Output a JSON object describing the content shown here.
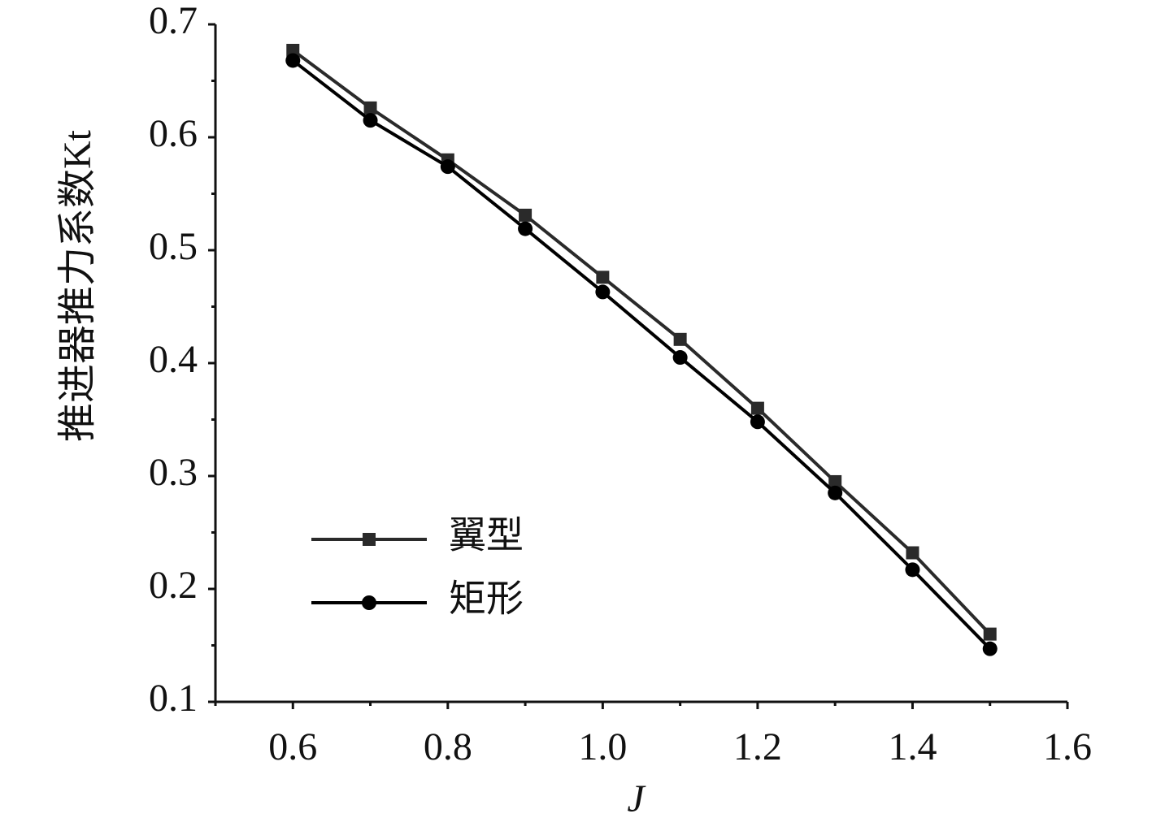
{
  "chart_data": {
    "type": "line",
    "ylabel": "推进器推力系数Kt",
    "xlabel": "J",
    "xlim": [
      0.5,
      1.6
    ],
    "ylim": [
      0.1,
      0.7
    ],
    "xticks": [
      0.6,
      0.8,
      {
        "value": 1,
        "label": "1.0"
      },
      1.2,
      1.4,
      1.6
    ],
    "yticks": [
      0.1,
      0.2,
      0.3,
      0.4,
      0.5,
      0.6,
      0.7
    ],
    "xminor": [
      0.5,
      0.7,
      0.9,
      1.1,
      1.3,
      1.5
    ],
    "yminor": [
      0.15,
      0.25,
      0.35,
      0.45,
      0.55,
      0.65
    ],
    "x": [
      0.6,
      0.7,
      0.8,
      0.9,
      1.0,
      1.1,
      1.2,
      1.3,
      1.4,
      1.5
    ],
    "series": [
      {
        "name": "翼型",
        "color": "#2a2a2a",
        "marker": "square",
        "values": [
          0.677,
          0.626,
          0.58,
          0.531,
          0.476,
          0.421,
          0.36,
          0.295,
          0.232,
          0.16
        ]
      },
      {
        "name": "矩形",
        "color": "#000000",
        "marker": "circle",
        "values": [
          0.668,
          0.615,
          0.574,
          0.519,
          0.463,
          0.405,
          0.348,
          0.285,
          0.217,
          0.147
        ]
      }
    ]
  }
}
